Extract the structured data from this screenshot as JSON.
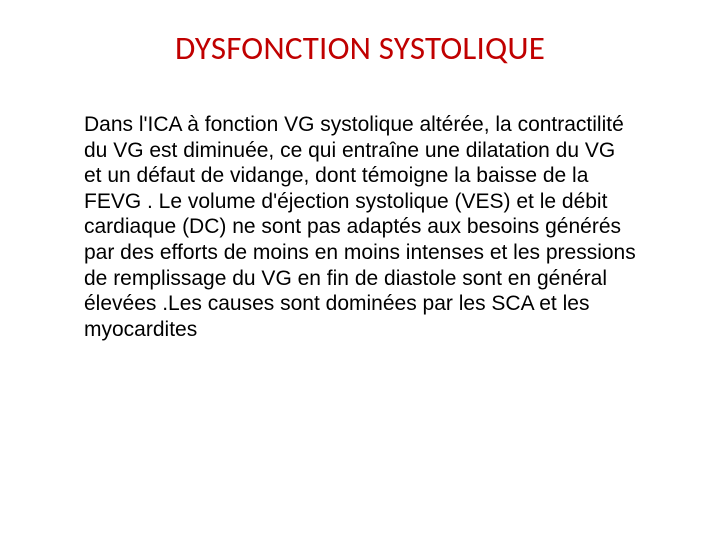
{
  "slide": {
    "title": "DYSFONCTION SYSTOLIQUE",
    "body": "Dans l'ICA à fonction VG systolique altérée, la contractilité du VG est diminuée, ce qui entraîne une dilatation du VG et un défaut de vidange, dont témoigne la baisse de la FEVG . Le volume d'éjection systolique (VES) et le débit cardiaque (DC) ne sont pas adaptés aux besoins générés par des efforts de moins en moins intenses et les pressions de remplissage du VG en fin de diastole sont en général élevées .Les causes sont dominées par les SCA et les myocardites",
    "title_color": "#c00000",
    "body_color": "#000000",
    "background_color": "#ffffff",
    "title_fontsize": 33,
    "body_fontsize": 21
  }
}
